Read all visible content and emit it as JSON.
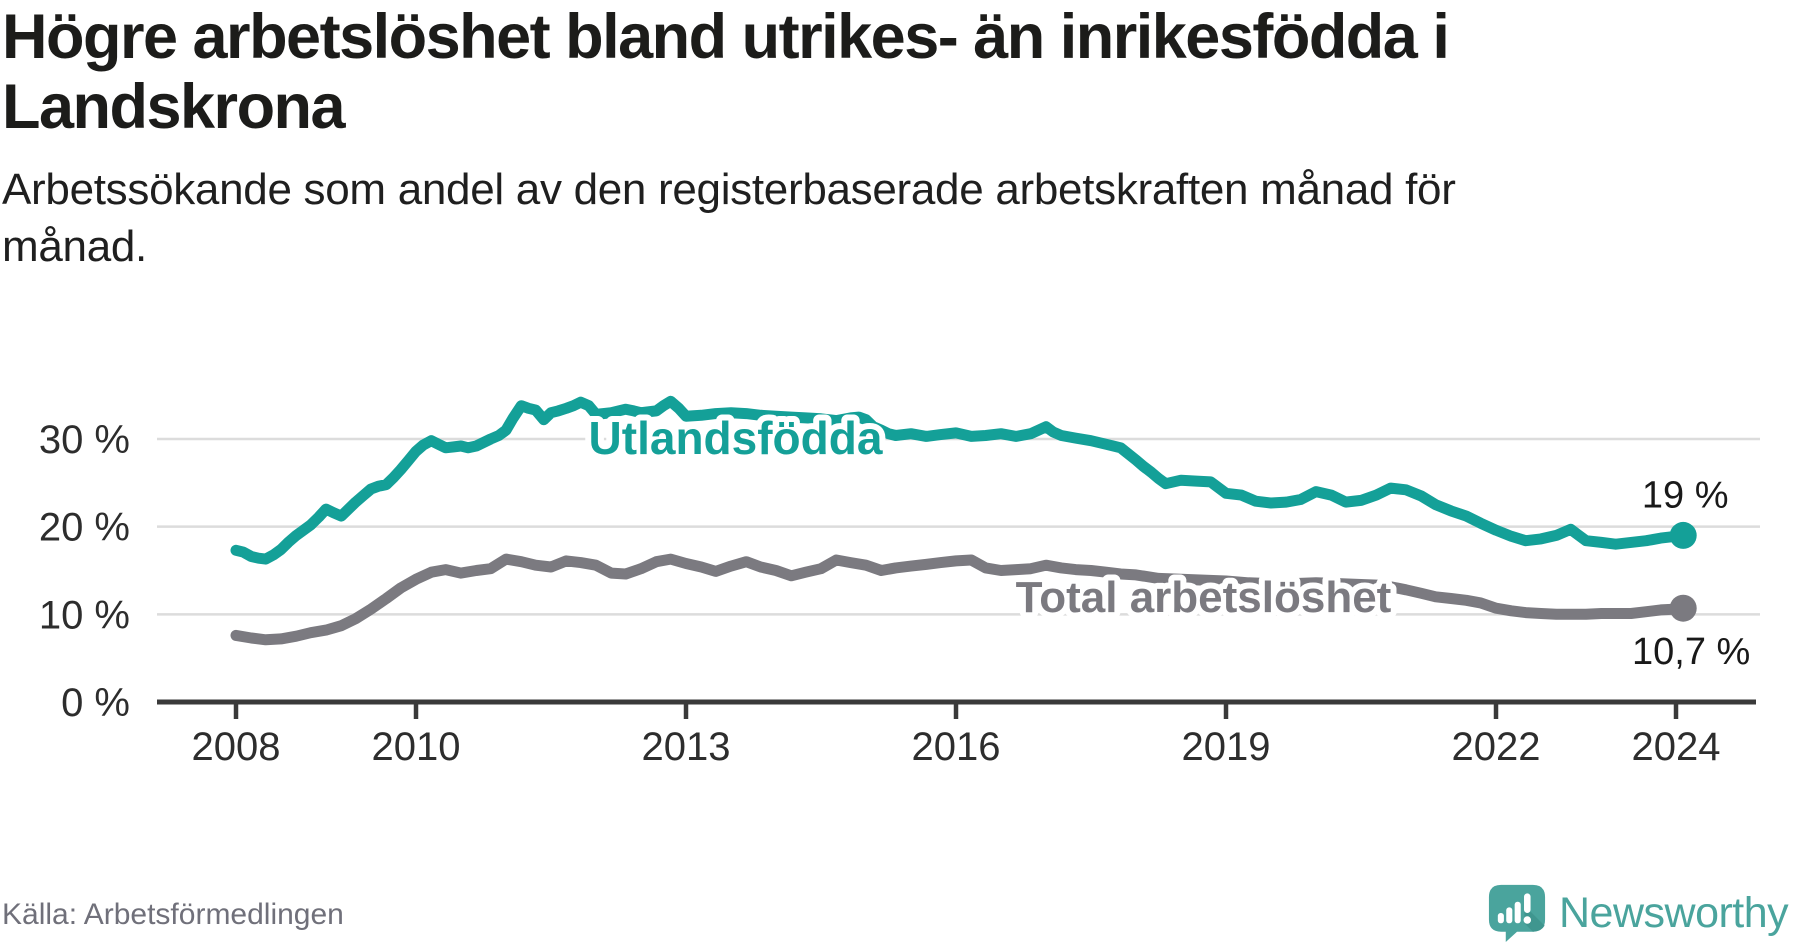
{
  "header": {
    "title": "Högre arbetslöshet bland utrikes- än inrikesfödda i Landskrona",
    "title_line1": "Högre arbetslöshet bland utrikes- än inrikesfödda i",
    "title_line2": "Landskrona",
    "subtitle_line1": "Arbetssökande som andel av den registerbaserade arbetskraften månad för",
    "subtitle_line2": "månad."
  },
  "footer": {
    "source": "Källa: Arbetsförmedlingen",
    "brand_name": "Newsworthy"
  },
  "colors": {
    "foreign_born": "#14a098",
    "total": "#7b7a80",
    "grid": "#dcdcdc",
    "axis": "#3a3a3a",
    "tick_label": "#2d2d2d",
    "value_label": "#191919",
    "brand_teal": "#4aa49d",
    "brand_dark": "#3f968f"
  },
  "chart_data": {
    "type": "line",
    "title": "Högre arbetslöshet bland utrikes- än inrikesfödda i Landskrona",
    "ylabel": "",
    "xlabel": "",
    "grid": "horizontal",
    "xlim": [
      2007.75,
      2024.9
    ],
    "ylim": [
      0,
      36
    ],
    "x_ticks": [
      {
        "v": 2008,
        "label": "2008"
      },
      {
        "v": 2010,
        "label": "2010"
      },
      {
        "v": 2013,
        "label": "2013"
      },
      {
        "v": 2016,
        "label": "2016"
      },
      {
        "v": 2019,
        "label": "2019"
      },
      {
        "v": 2022,
        "label": "2022"
      },
      {
        "v": 2024,
        "label": "2024"
      }
    ],
    "y_ticks": [
      {
        "v": 0,
        "label": "0 %"
      },
      {
        "v": 10,
        "label": "10 %"
      },
      {
        "v": 20,
        "label": "20 %"
      },
      {
        "v": 30,
        "label": "30 %"
      }
    ],
    "series": [
      {
        "name": "Utlandsfödda",
        "color": "#14a098",
        "end_label": "19 %",
        "label": {
          "text": "Utlandsfödda",
          "x": 2013.55,
          "y": 30.1
        },
        "points": [
          [
            2008.0,
            17.3
          ],
          [
            2008.08,
            17.1
          ],
          [
            2008.17,
            16.6
          ],
          [
            2008.25,
            16.4
          ],
          [
            2008.33,
            16.3
          ],
          [
            2008.42,
            16.8
          ],
          [
            2008.5,
            17.4
          ],
          [
            2008.58,
            18.2
          ],
          [
            2008.67,
            19.0
          ],
          [
            2008.75,
            19.6
          ],
          [
            2008.83,
            20.2
          ],
          [
            2008.92,
            21.1
          ],
          [
            2009.0,
            22.0
          ],
          [
            2009.08,
            21.6
          ],
          [
            2009.17,
            21.2
          ],
          [
            2009.25,
            22.0
          ],
          [
            2009.33,
            22.8
          ],
          [
            2009.42,
            23.6
          ],
          [
            2009.5,
            24.3
          ],
          [
            2009.58,
            24.6
          ],
          [
            2009.67,
            24.8
          ],
          [
            2009.75,
            25.6
          ],
          [
            2009.83,
            26.5
          ],
          [
            2009.92,
            27.6
          ],
          [
            2010.0,
            28.6
          ],
          [
            2010.08,
            29.3
          ],
          [
            2010.17,
            29.8
          ],
          [
            2010.25,
            29.4
          ],
          [
            2010.33,
            29.0
          ],
          [
            2010.42,
            29.1
          ],
          [
            2010.5,
            29.2
          ],
          [
            2010.58,
            29.0
          ],
          [
            2010.67,
            29.2
          ],
          [
            2010.75,
            29.6
          ],
          [
            2010.83,
            30.0
          ],
          [
            2010.92,
            30.4
          ],
          [
            2011.0,
            31.0
          ],
          [
            2011.08,
            32.4
          ],
          [
            2011.17,
            33.8
          ],
          [
            2011.25,
            33.5
          ],
          [
            2011.33,
            33.3
          ],
          [
            2011.42,
            32.2
          ],
          [
            2011.5,
            33.0
          ],
          [
            2011.58,
            33.2
          ],
          [
            2011.67,
            33.5
          ],
          [
            2011.75,
            33.8
          ],
          [
            2011.83,
            34.2
          ],
          [
            2011.92,
            33.8
          ],
          [
            2012.0,
            32.8
          ],
          [
            2012.08,
            32.9
          ],
          [
            2012.17,
            33.0
          ],
          [
            2012.25,
            33.2
          ],
          [
            2012.33,
            33.4
          ],
          [
            2012.42,
            33.2
          ],
          [
            2012.5,
            33.0
          ],
          [
            2012.58,
            33.1
          ],
          [
            2012.67,
            33.2
          ],
          [
            2012.75,
            33.8
          ],
          [
            2012.83,
            34.3
          ],
          [
            2012.92,
            33.5
          ],
          [
            2013.0,
            32.6
          ],
          [
            2013.17,
            32.7
          ],
          [
            2013.33,
            32.9
          ],
          [
            2013.5,
            33.0
          ],
          [
            2013.67,
            32.9
          ],
          [
            2013.83,
            32.7
          ],
          [
            2014.0,
            32.6
          ],
          [
            2014.17,
            32.5
          ],
          [
            2014.33,
            32.4
          ],
          [
            2014.5,
            32.3
          ],
          [
            2014.67,
            32.1
          ],
          [
            2014.83,
            32.4
          ],
          [
            2014.92,
            32.5
          ],
          [
            2015.0,
            32.2
          ],
          [
            2015.08,
            31.4
          ],
          [
            2015.17,
            31.0
          ],
          [
            2015.25,
            30.6
          ],
          [
            2015.33,
            30.4
          ],
          [
            2015.5,
            30.6
          ],
          [
            2015.67,
            30.3
          ],
          [
            2015.83,
            30.5
          ],
          [
            2016.0,
            30.7
          ],
          [
            2016.17,
            30.3
          ],
          [
            2016.33,
            30.4
          ],
          [
            2016.5,
            30.6
          ],
          [
            2016.67,
            30.3
          ],
          [
            2016.83,
            30.6
          ],
          [
            2017.0,
            31.4
          ],
          [
            2017.08,
            30.8
          ],
          [
            2017.17,
            30.4
          ],
          [
            2017.33,
            30.1
          ],
          [
            2017.5,
            29.8
          ],
          [
            2017.67,
            29.4
          ],
          [
            2017.83,
            29.0
          ],
          [
            2018.0,
            27.6
          ],
          [
            2018.08,
            26.9
          ],
          [
            2018.17,
            26.2
          ],
          [
            2018.25,
            25.5
          ],
          [
            2018.33,
            24.9
          ],
          [
            2018.5,
            25.3
          ],
          [
            2018.67,
            25.2
          ],
          [
            2018.83,
            25.1
          ],
          [
            2019.0,
            23.8
          ],
          [
            2019.17,
            23.6
          ],
          [
            2019.33,
            22.9
          ],
          [
            2019.5,
            22.7
          ],
          [
            2019.67,
            22.8
          ],
          [
            2019.83,
            23.1
          ],
          [
            2020.0,
            24.0
          ],
          [
            2020.17,
            23.6
          ],
          [
            2020.33,
            22.8
          ],
          [
            2020.5,
            23.0
          ],
          [
            2020.67,
            23.6
          ],
          [
            2020.83,
            24.4
          ],
          [
            2021.0,
            24.2
          ],
          [
            2021.17,
            23.5
          ],
          [
            2021.33,
            22.5
          ],
          [
            2021.5,
            21.8
          ],
          [
            2021.67,
            21.2
          ],
          [
            2021.83,
            20.4
          ],
          [
            2022.0,
            19.6
          ],
          [
            2022.17,
            18.9
          ],
          [
            2022.33,
            18.4
          ],
          [
            2022.5,
            18.6
          ],
          [
            2022.67,
            19.0
          ],
          [
            2022.83,
            19.7
          ],
          [
            2022.92,
            19.0
          ],
          [
            2023.0,
            18.4
          ],
          [
            2023.17,
            18.2
          ],
          [
            2023.33,
            18.0
          ],
          [
            2023.5,
            18.2
          ],
          [
            2023.67,
            18.4
          ],
          [
            2023.83,
            18.7
          ],
          [
            2024.0,
            18.9
          ],
          [
            2024.08,
            19.0
          ]
        ]
      },
      {
        "name": "Total arbetslöshet",
        "color": "#7b7a80",
        "end_label": "10,7 %",
        "label": {
          "text": "Total arbetslöshet",
          "x": 2018.75,
          "y": 12.1
        },
        "points": [
          [
            2008.0,
            7.6
          ],
          [
            2008.17,
            7.3
          ],
          [
            2008.33,
            7.1
          ],
          [
            2008.5,
            7.2
          ],
          [
            2008.67,
            7.5
          ],
          [
            2008.83,
            7.9
          ],
          [
            2009.0,
            8.2
          ],
          [
            2009.17,
            8.7
          ],
          [
            2009.33,
            9.5
          ],
          [
            2009.5,
            10.6
          ],
          [
            2009.67,
            11.8
          ],
          [
            2009.83,
            13.0
          ],
          [
            2010.0,
            14.0
          ],
          [
            2010.17,
            14.8
          ],
          [
            2010.33,
            15.1
          ],
          [
            2010.5,
            14.7
          ],
          [
            2010.67,
            15.0
          ],
          [
            2010.83,
            15.2
          ],
          [
            2011.0,
            16.3
          ],
          [
            2011.17,
            16.0
          ],
          [
            2011.33,
            15.6
          ],
          [
            2011.5,
            15.4
          ],
          [
            2011.67,
            16.1
          ],
          [
            2011.83,
            15.9
          ],
          [
            2012.0,
            15.6
          ],
          [
            2012.17,
            14.7
          ],
          [
            2012.33,
            14.6
          ],
          [
            2012.5,
            15.2
          ],
          [
            2012.67,
            16.0
          ],
          [
            2012.83,
            16.3
          ],
          [
            2013.0,
            15.8
          ],
          [
            2013.17,
            15.4
          ],
          [
            2013.33,
            14.9
          ],
          [
            2013.5,
            15.5
          ],
          [
            2013.67,
            16.0
          ],
          [
            2013.83,
            15.4
          ],
          [
            2014.0,
            15.0
          ],
          [
            2014.17,
            14.4
          ],
          [
            2014.33,
            14.8
          ],
          [
            2014.5,
            15.2
          ],
          [
            2014.67,
            16.2
          ],
          [
            2014.83,
            15.9
          ],
          [
            2015.0,
            15.6
          ],
          [
            2015.17,
            15.0
          ],
          [
            2015.33,
            15.3
          ],
          [
            2015.5,
            15.5
          ],
          [
            2015.67,
            15.7
          ],
          [
            2015.83,
            15.9
          ],
          [
            2016.0,
            16.1
          ],
          [
            2016.17,
            16.2
          ],
          [
            2016.33,
            15.3
          ],
          [
            2016.5,
            15.0
          ],
          [
            2016.67,
            15.1
          ],
          [
            2016.83,
            15.2
          ],
          [
            2017.0,
            15.6
          ],
          [
            2017.17,
            15.3
          ],
          [
            2017.33,
            15.1
          ],
          [
            2017.5,
            15.0
          ],
          [
            2017.67,
            14.8
          ],
          [
            2017.83,
            14.6
          ],
          [
            2018.0,
            14.5
          ],
          [
            2018.25,
            14.1
          ],
          [
            2018.5,
            14.0
          ],
          [
            2018.75,
            13.9
          ],
          [
            2019.0,
            13.8
          ],
          [
            2019.25,
            13.6
          ],
          [
            2019.5,
            13.5
          ],
          [
            2019.75,
            13.5
          ],
          [
            2020.0,
            13.6
          ],
          [
            2020.25,
            13.5
          ],
          [
            2020.5,
            13.4
          ],
          [
            2020.75,
            13.3
          ],
          [
            2021.0,
            12.8
          ],
          [
            2021.17,
            12.4
          ],
          [
            2021.33,
            12.0
          ],
          [
            2021.5,
            11.8
          ],
          [
            2021.67,
            11.6
          ],
          [
            2021.83,
            11.3
          ],
          [
            2022.0,
            10.7
          ],
          [
            2022.17,
            10.4
          ],
          [
            2022.33,
            10.2
          ],
          [
            2022.5,
            10.1
          ],
          [
            2022.67,
            10.0
          ],
          [
            2022.83,
            10.0
          ],
          [
            2023.0,
            10.0
          ],
          [
            2023.17,
            10.1
          ],
          [
            2023.33,
            10.1
          ],
          [
            2023.5,
            10.1
          ],
          [
            2023.67,
            10.3
          ],
          [
            2023.83,
            10.5
          ],
          [
            2024.0,
            10.6
          ],
          [
            2024.08,
            10.7
          ]
        ]
      }
    ]
  }
}
